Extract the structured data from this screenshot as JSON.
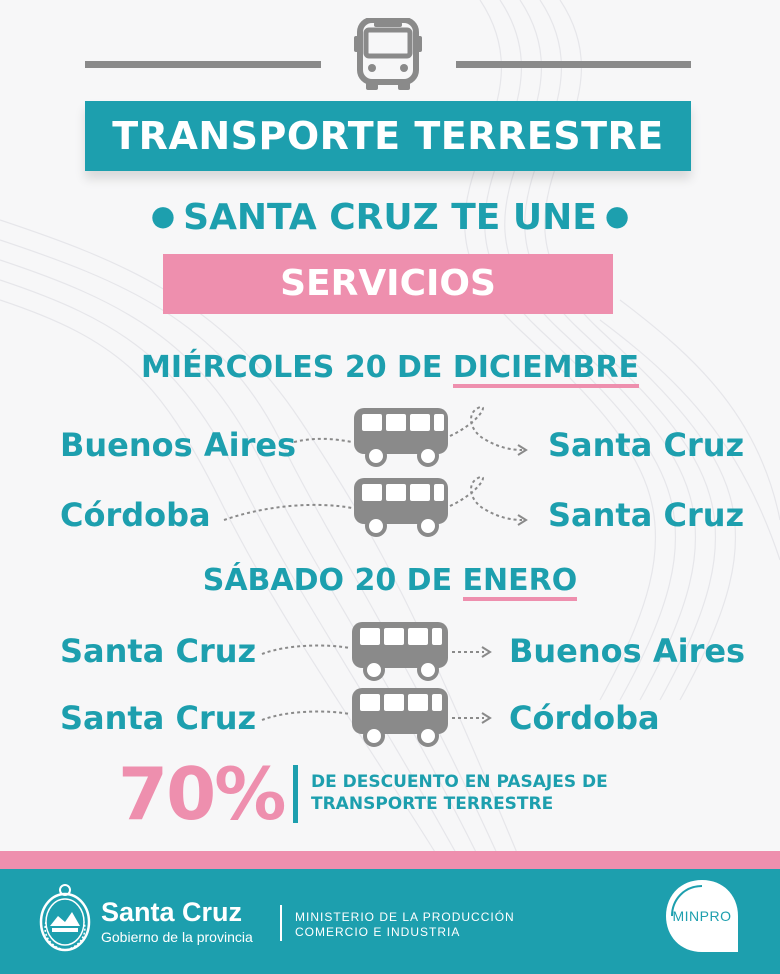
{
  "header": {
    "icon": "bus-icon",
    "title": "TRANSPORTE TERRESTRE",
    "slogan": "SANTA CRUZ TE UNE",
    "services": "SERVICIOS"
  },
  "schedule": [
    {
      "date_prefix": "MIÉRCOLES 20 DE",
      "date_month": "DICIEMBRE",
      "routes": [
        {
          "from": "Buenos Aires",
          "to": "Santa Cruz"
        },
        {
          "from": "Córdoba",
          "to": "Santa Cruz"
        }
      ]
    },
    {
      "date_prefix": "SÁBADO 20 DE",
      "date_month": "ENERO",
      "routes": [
        {
          "from": "Santa Cruz",
          "to": "Buenos Aires"
        },
        {
          "from": "Santa Cruz",
          "to": "Córdoba"
        }
      ]
    }
  ],
  "discount": {
    "percent": "70%",
    "line1": "DE DESCUENTO EN PASAJES DE",
    "line2": "TRANSPORTE TERRESTRE"
  },
  "footer": {
    "gov_name": "Santa Cruz",
    "gov_sub": "Gobierno de la provincia",
    "ministry_line1": "MINISTERIO DE LA PRODUCCIÓN",
    "ministry_line2": "COMERCIO E INDUSTRIA",
    "logo_text": "MINPRO"
  },
  "colors": {
    "teal": "#1d9fae",
    "pink": "#ee8fae",
    "gray": "#8a8a8a",
    "background": "#f7f7f8"
  }
}
